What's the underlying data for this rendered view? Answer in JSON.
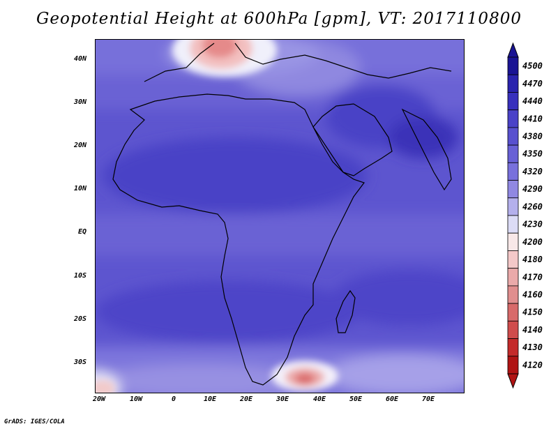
{
  "title": "Geopotential Height at 600hPa [gpm], VT: 2017110800",
  "credit": "GrADS: IGES/COLA",
  "lat_labels": [
    "40N",
    "30N",
    "20N",
    "10N",
    "EQ",
    "10S",
    "20S",
    "30S"
  ],
  "lon_labels": [
    "20W",
    "10W",
    "0",
    "10E",
    "20E",
    "30E",
    "40E",
    "50E",
    "60E",
    "70E"
  ],
  "colorbar": {
    "levels": [
      "4500",
      "4470",
      "4440",
      "4410",
      "4380",
      "4350",
      "4320",
      "4290",
      "4260",
      "4230",
      "4200",
      "4180",
      "4170",
      "4160",
      "4150",
      "4140",
      "4130",
      "4120"
    ],
    "colors": [
      "#1a1494",
      "#2a23ae",
      "#3830bd",
      "#4a42c8",
      "#5850cf",
      "#6860d6",
      "#7870dc",
      "#9088e2",
      "#b4b0ec",
      "#dcdcf6",
      "#f8e8e8",
      "#f4c8c8",
      "#eaaaaa",
      "#e08e8e",
      "#d86a6a",
      "#d04c4c",
      "#c42a2a",
      "#b01414"
    ]
  }
}
